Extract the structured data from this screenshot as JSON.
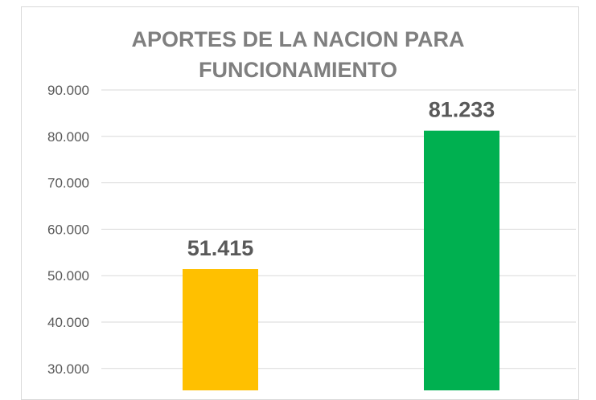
{
  "chart_data": {
    "type": "bar",
    "title_lines": [
      "APORTES DE LA NACION PARA",
      "FUNCIONAMIENTO"
    ],
    "categories": [
      "",
      ""
    ],
    "values": [
      51415,
      81233
    ],
    "value_labels": [
      "51.415",
      "81.233"
    ],
    "bar_colors": [
      "#ffc000",
      "#00b050"
    ],
    "ytick_values": [
      30000,
      40000,
      50000,
      60000,
      70000,
      80000,
      90000
    ],
    "ytick_labels": [
      "30.000",
      "40.000",
      "50.000",
      "60.000",
      "70.000",
      "80.000",
      "90.000"
    ],
    "ylim": [
      30000,
      90000
    ],
    "grid": true,
    "xlabel": "",
    "ylabel": ""
  }
}
